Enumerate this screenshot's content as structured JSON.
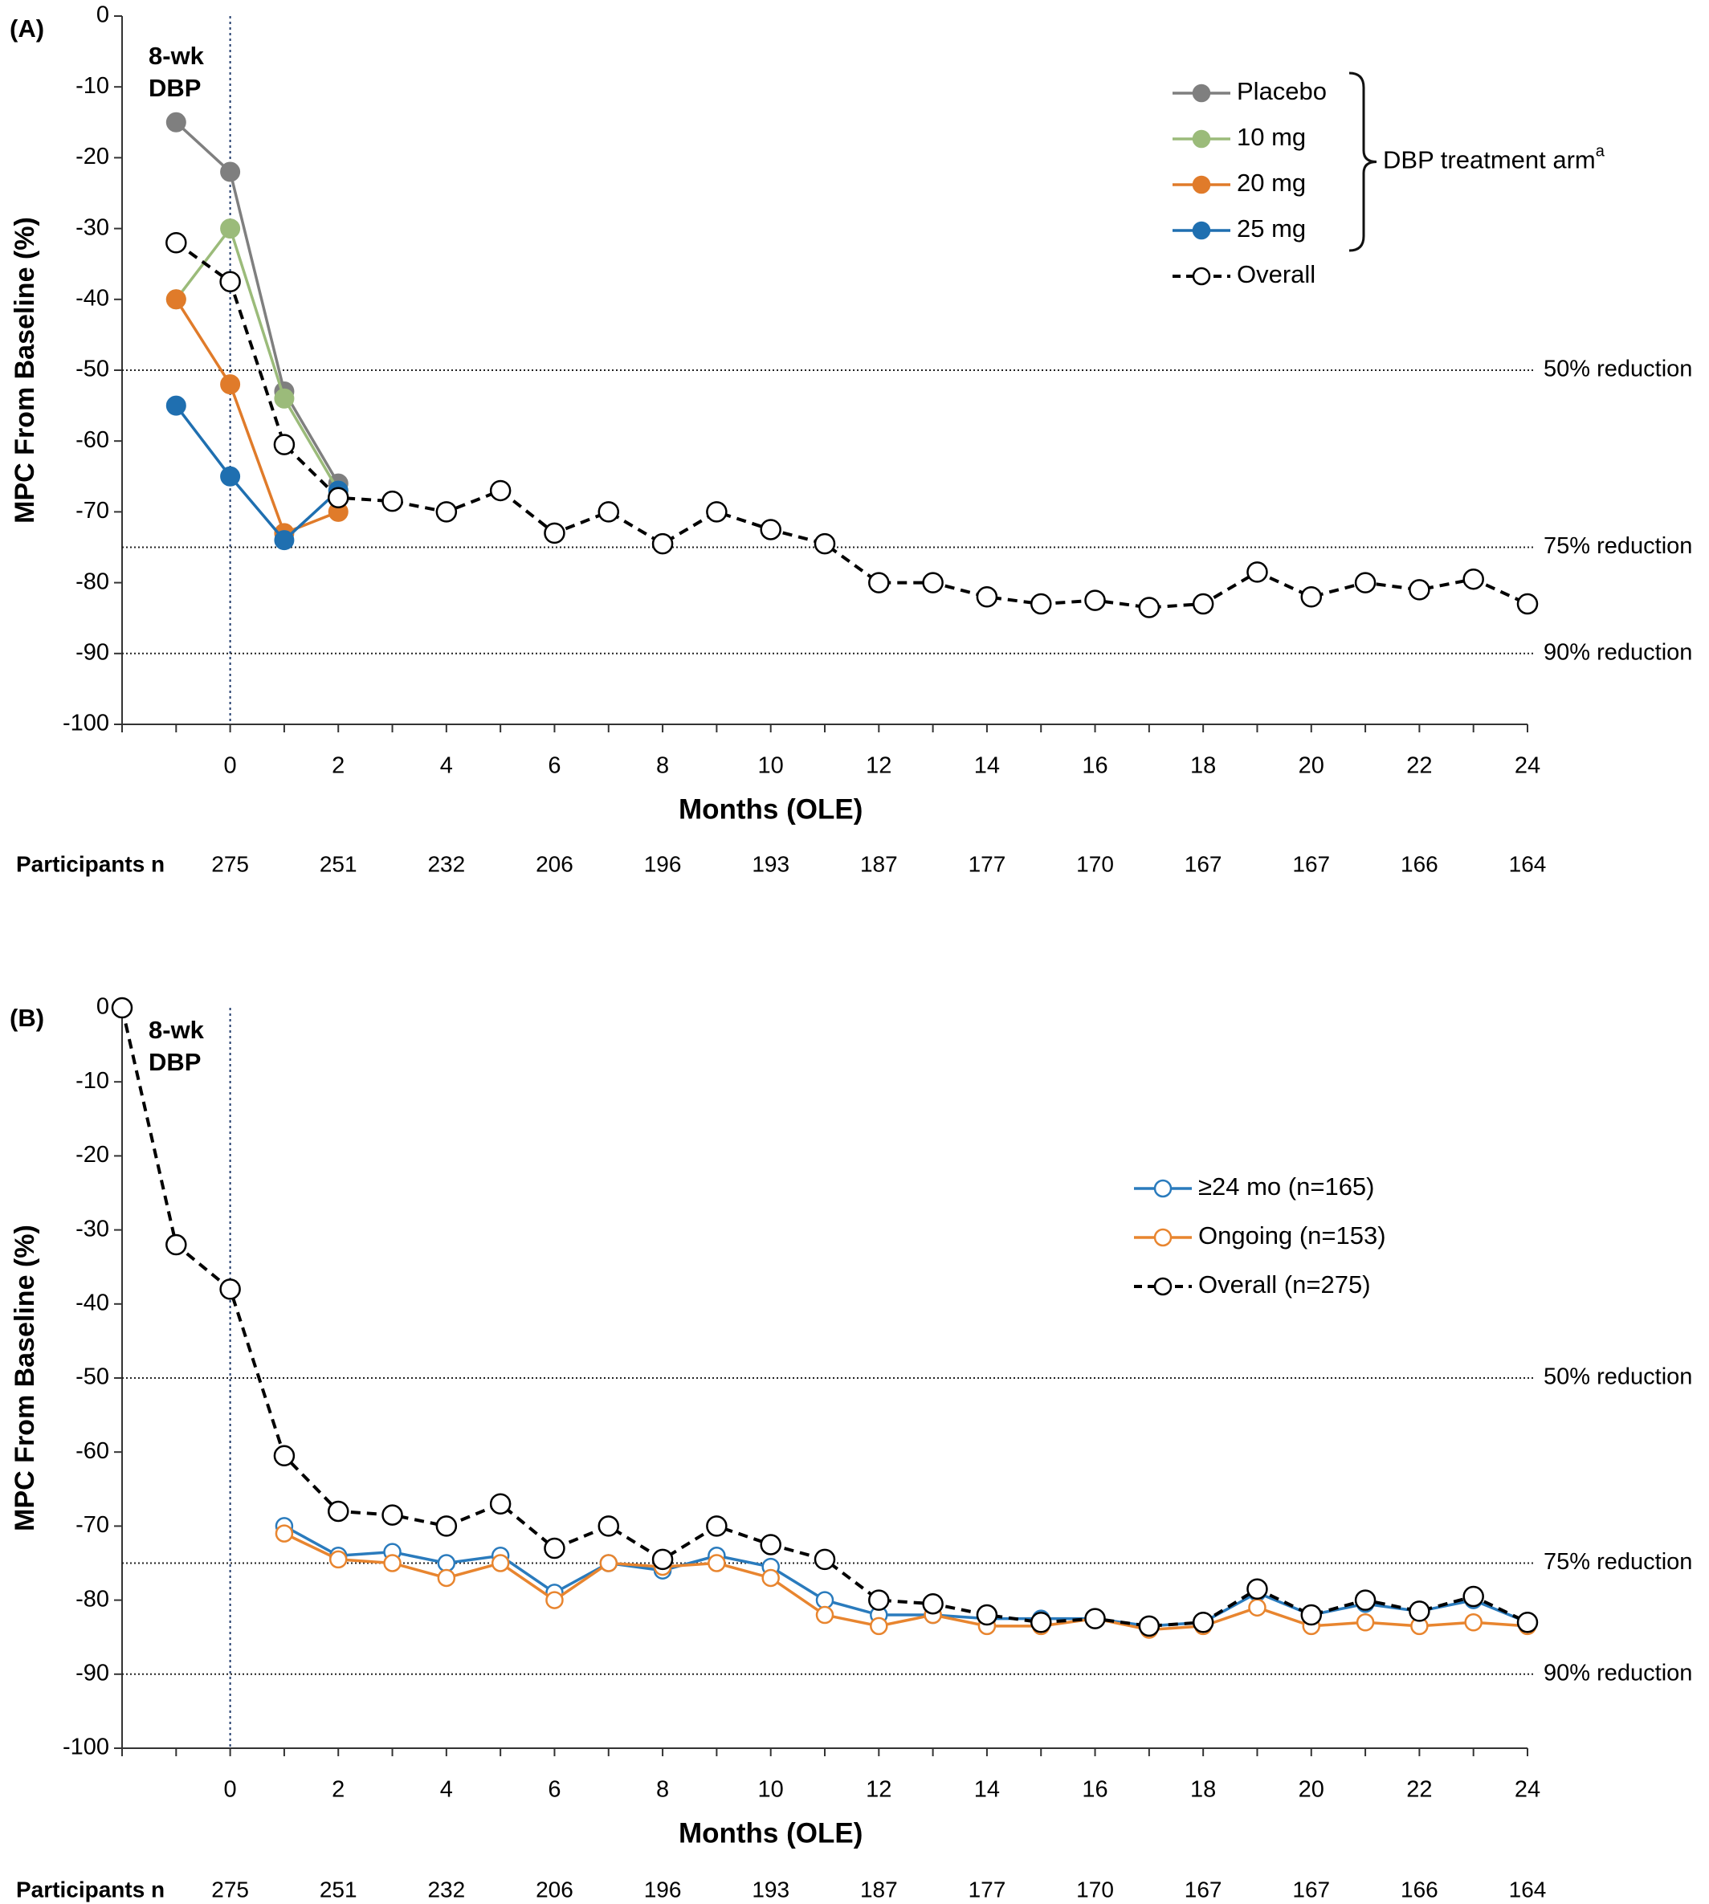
{
  "colors": {
    "placebo": "#7f7f7f",
    "dose10": "#9bbb7a",
    "dose20": "#e07b2a",
    "dose25": "#1f6fb0",
    "overall": "#000000",
    "ge24": "#2a7bbd",
    "ongoing": "#e8852f",
    "axis": "#333333"
  },
  "chart_data": [
    {
      "type": "line",
      "panel_label": "(A)",
      "ylabel": "MPC From Baseline (%)",
      "xlabel": "Months (OLE)",
      "ylim": [
        -100,
        0
      ],
      "yticks": [
        0,
        -10,
        -20,
        -30,
        -40,
        -50,
        -60,
        -70,
        -80,
        -90,
        -100
      ],
      "xlim": [
        -2,
        24
      ],
      "xticks": [
        0,
        2,
        4,
        6,
        8,
        10,
        12,
        14,
        16,
        18,
        20,
        22,
        24
      ],
      "vline_label": [
        "8-wk",
        "DBP"
      ],
      "reference_lines": [
        {
          "y": -50,
          "label": "50% reduction"
        },
        {
          "y": -75,
          "label": "75% reduction"
        },
        {
          "y": -90,
          "label": "90% reduction"
        }
      ],
      "legend_bracket_label": "DBP treatment arm",
      "legend_bracket_sup": "a",
      "legend_position": "top-right",
      "participants_label": "Participants n",
      "participants": [
        {
          "x": 0,
          "n": "275"
        },
        {
          "x": 2,
          "n": "251"
        },
        {
          "x": 4,
          "n": "232"
        },
        {
          "x": 6,
          "n": "206"
        },
        {
          "x": 8,
          "n": "196"
        },
        {
          "x": 10,
          "n": "193"
        },
        {
          "x": 12,
          "n": "187"
        },
        {
          "x": 14,
          "n": "177"
        },
        {
          "x": 16,
          "n": "170"
        },
        {
          "x": 18,
          "n": "167"
        },
        {
          "x": 20,
          "n": "167"
        },
        {
          "x": 22,
          "n": "166"
        },
        {
          "x": 24,
          "n": "164"
        }
      ],
      "series": [
        {
          "name": "Placebo",
          "color_key": "placebo",
          "style": "solid",
          "marker": "filled",
          "x": [
            -1,
            0,
            1,
            2
          ],
          "y": [
            -15,
            -22,
            -53,
            -66
          ]
        },
        {
          "name": "10 mg",
          "color_key": "dose10",
          "style": "solid",
          "marker": "filled",
          "x": [
            -1,
            0,
            1,
            2
          ],
          "y": [
            -40,
            -30,
            -54,
            -67
          ]
        },
        {
          "name": "20 mg",
          "color_key": "dose20",
          "style": "solid",
          "marker": "filled",
          "x": [
            -1,
            0,
            1,
            2
          ],
          "y": [
            -40,
            -52,
            -73,
            -70
          ]
        },
        {
          "name": "25 mg",
          "color_key": "dose25",
          "style": "solid",
          "marker": "filled",
          "x": [
            -1,
            0,
            1,
            2
          ],
          "y": [
            -55,
            -65,
            -74,
            -67
          ]
        },
        {
          "name": "Overall",
          "color_key": "overall",
          "style": "dashed",
          "marker": "open",
          "x": [
            -1,
            0,
            1,
            2,
            3,
            4,
            5,
            6,
            7,
            8,
            9,
            10,
            11,
            12,
            13,
            14,
            15,
            16,
            17,
            18,
            19,
            20,
            21,
            22,
            23,
            24
          ],
          "y": [
            -32,
            -37.5,
            -60.5,
            -68,
            -68.5,
            -70,
            -67,
            -73,
            -70,
            -74.5,
            -70,
            -72.5,
            -74.5,
            -80,
            -80,
            -82,
            -83,
            -82.5,
            -83.5,
            -83,
            -78.5,
            -82,
            -80,
            -81,
            -79.5,
            -83
          ]
        }
      ]
    },
    {
      "type": "line",
      "panel_label": "(B)",
      "ylabel": "MPC From Baseline (%)",
      "xlabel": "Months (OLE)",
      "ylim": [
        -100,
        0
      ],
      "yticks": [
        0,
        -10,
        -20,
        -30,
        -40,
        -50,
        -60,
        -70,
        -80,
        -90,
        -100
      ],
      "xlim": [
        -2,
        24
      ],
      "xticks": [
        0,
        2,
        4,
        6,
        8,
        10,
        12,
        14,
        16,
        18,
        20,
        22,
        24
      ],
      "vline_label": [
        "8-wk",
        "DBP"
      ],
      "reference_lines": [
        {
          "y": -50,
          "label": "50% reduction"
        },
        {
          "y": -75,
          "label": "75% reduction"
        },
        {
          "y": -90,
          "label": "90% reduction"
        }
      ],
      "legend_position": "right",
      "participants_label": "Participants n",
      "participants": [
        {
          "x": 0,
          "n": "275"
        },
        {
          "x": 2,
          "n": "251"
        },
        {
          "x": 4,
          "n": "232"
        },
        {
          "x": 6,
          "n": "206"
        },
        {
          "x": 8,
          "n": "196"
        },
        {
          "x": 10,
          "n": "193"
        },
        {
          "x": 12,
          "n": "187"
        },
        {
          "x": 14,
          "n": "177"
        },
        {
          "x": 16,
          "n": "170"
        },
        {
          "x": 18,
          "n": "167"
        },
        {
          "x": 20,
          "n": "167"
        },
        {
          "x": 22,
          "n": "166"
        },
        {
          "x": 24,
          "n": "164"
        }
      ],
      "series": [
        {
          "name": "≥24 mo (n=165)",
          "color_key": "ge24",
          "style": "solid",
          "marker": "open",
          "x": [
            1,
            2,
            3,
            4,
            5,
            6,
            7,
            8,
            9,
            10,
            11,
            12,
            13,
            14,
            15,
            16,
            17,
            18,
            19,
            20,
            21,
            22,
            23,
            24
          ],
          "y": [
            -70,
            -74,
            -73.5,
            -75,
            -74,
            -79,
            -75,
            -76,
            -74,
            -75.5,
            -80,
            -82,
            -82,
            -82.5,
            -82.5,
            -82.5,
            -83.5,
            -83,
            -79,
            -82,
            -80.5,
            -81.5,
            -80,
            -83
          ]
        },
        {
          "name": "Ongoing (n=153)",
          "color_key": "ongoing",
          "style": "solid",
          "marker": "open",
          "x": [
            1,
            2,
            3,
            4,
            5,
            6,
            7,
            8,
            9,
            10,
            11,
            12,
            13,
            14,
            15,
            16,
            17,
            18,
            19,
            20,
            21,
            22,
            23,
            24
          ],
          "y": [
            -71,
            -74.5,
            -75,
            -77,
            -75,
            -80,
            -75,
            -75.5,
            -75,
            -77,
            -82,
            -83.5,
            -82,
            -83.5,
            -83.5,
            -82.5,
            -84,
            -83.5,
            -81,
            -83.5,
            -83,
            -83.5,
            -83,
            -83.5
          ]
        },
        {
          "name": "Overall (n=275)",
          "color_key": "overall",
          "style": "dashed",
          "marker": "open",
          "x": [
            -2,
            -1,
            0,
            1,
            2,
            3,
            4,
            5,
            6,
            7,
            8,
            9,
            10,
            11,
            12,
            13,
            14,
            15,
            16,
            17,
            18,
            19,
            20,
            21,
            22,
            23,
            24
          ],
          "y": [
            0,
            -32,
            -38,
            -60.5,
            -68,
            -68.5,
            -70,
            -67,
            -73,
            -70,
            -74.5,
            -70,
            -72.5,
            -74.5,
            -80,
            -80.5,
            -82,
            -83,
            -82.5,
            -83.5,
            -83,
            -78.5,
            -82,
            -80,
            -81.5,
            -79.5,
            -83
          ]
        }
      ]
    }
  ]
}
